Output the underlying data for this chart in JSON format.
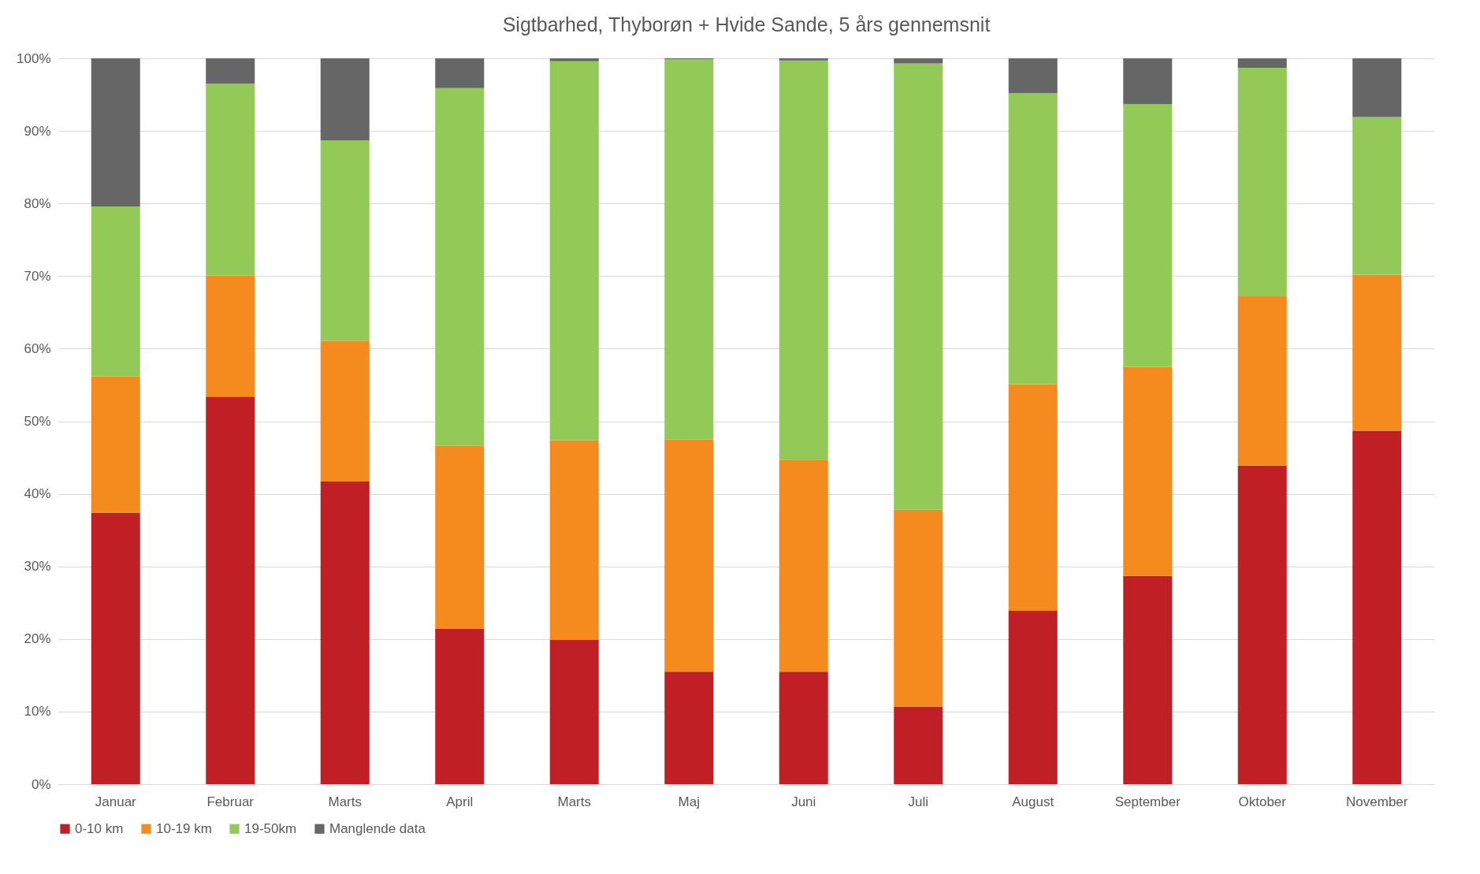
{
  "chart_data": {
    "type": "bar",
    "stacked": true,
    "title": "Sigtbarhed, Thyborøn + Hvide Sande, 5 års gennemsnit",
    "categories": [
      "Januar",
      "Februar",
      "Marts",
      "April",
      "Marts",
      "Maj",
      "Juni",
      "Juli",
      "August",
      "September",
      "Oktober",
      "November"
    ],
    "series": [
      {
        "name": "0-10 km",
        "color": "#c01f26",
        "values": [
          37.4,
          53.4,
          41.7,
          21.4,
          19.9,
          15.5,
          15.5,
          10.7,
          23.9,
          28.7,
          43.9,
          48.7
        ]
      },
      {
        "name": "10-19 km",
        "color": "#f58a1f",
        "values": [
          18.8,
          16.7,
          19.4,
          25.2,
          27.5,
          32.0,
          29.2,
          27.1,
          31.2,
          28.8,
          23.3,
          21.5
        ]
      },
      {
        "name": "19-50km",
        "color": "#92c957",
        "values": [
          23.4,
          26.4,
          27.6,
          49.3,
          52.2,
          52.4,
          55.0,
          61.5,
          40.1,
          36.2,
          31.5,
          21.7
        ]
      },
      {
        "name": "Manglende data",
        "color": "#666666",
        "values": [
          20.4,
          3.5,
          11.3,
          4.1,
          0.4,
          0.1,
          0.3,
          0.7,
          4.8,
          6.3,
          1.3,
          8.1
        ]
      }
    ],
    "ylim": [
      0,
      100
    ],
    "yticks": [
      {
        "value": 0,
        "label": "0%"
      },
      {
        "value": 10,
        "label": "10%"
      },
      {
        "value": 20,
        "label": "20%"
      },
      {
        "value": 30,
        "label": "30%"
      },
      {
        "value": 40,
        "label": "40%"
      },
      {
        "value": 50,
        "label": "50%"
      },
      {
        "value": 60,
        "label": "60%"
      },
      {
        "value": 70,
        "label": "70%"
      },
      {
        "value": 80,
        "label": "80%"
      },
      {
        "value": 90,
        "label": "90%"
      },
      {
        "value": 100,
        "label": "100%"
      }
    ],
    "grid": "y",
    "legend": "bottom"
  }
}
